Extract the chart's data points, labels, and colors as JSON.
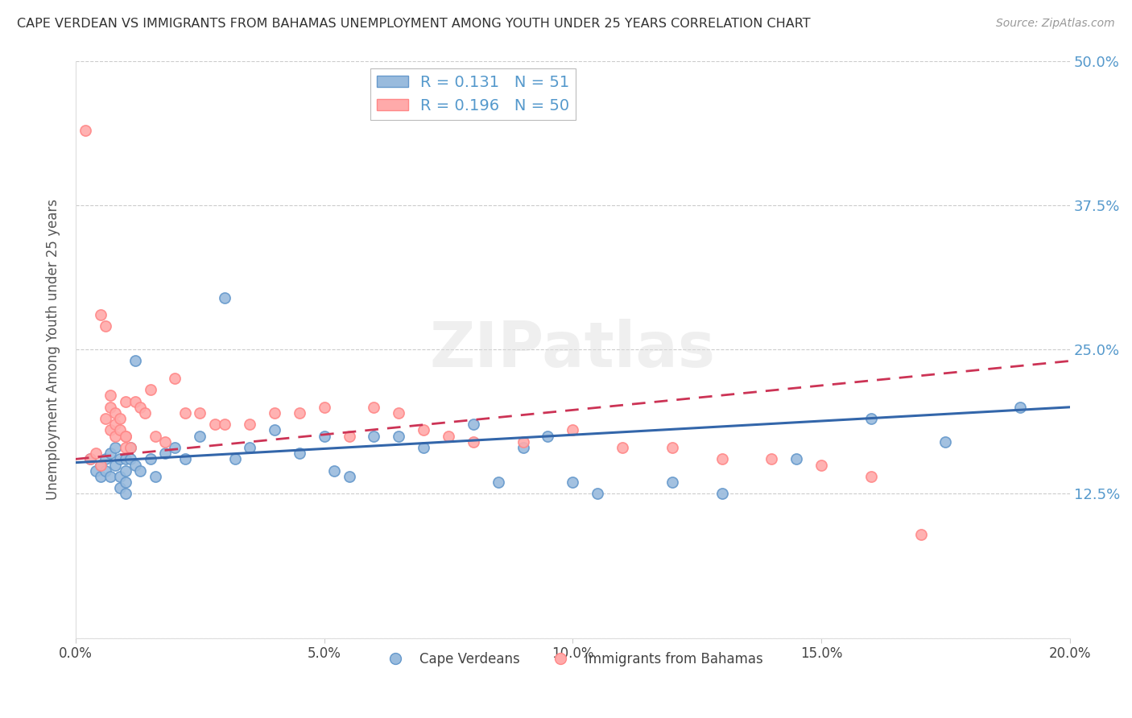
{
  "title": "CAPE VERDEAN VS IMMIGRANTS FROM BAHAMAS UNEMPLOYMENT AMONG YOUTH UNDER 25 YEARS CORRELATION CHART",
  "source": "Source: ZipAtlas.com",
  "ylabel": "Unemployment Among Youth under 25 years",
  "xlim": [
    0.0,
    0.2
  ],
  "ylim": [
    0.0,
    0.5
  ],
  "yticks": [
    0.0,
    0.125,
    0.25,
    0.375,
    0.5
  ],
  "ytick_labels_right": [
    "",
    "12.5%",
    "25.0%",
    "37.5%",
    "50.0%"
  ],
  "xticks": [
    0.0,
    0.05,
    0.1,
    0.15,
    0.2
  ],
  "xtick_labels": [
    "0.0%",
    "5.0%",
    "10.0%",
    "15.0%",
    "20.0%"
  ],
  "blue_color": "#99BBDD",
  "pink_color": "#FFAAAA",
  "blue_edge_color": "#6699CC",
  "pink_edge_color": "#FF8888",
  "blue_line_color": "#3366AA",
  "pink_line_color": "#CC3355",
  "tick_color": "#5599CC",
  "R_blue": 0.131,
  "N_blue": 51,
  "R_pink": 0.196,
  "N_pink": 50,
  "legend1": "Cape Verdeans",
  "legend2": "Immigrants from Bahamas",
  "watermark": "ZIPatlas",
  "blue_x": [
    0.003,
    0.004,
    0.005,
    0.005,
    0.006,
    0.006,
    0.007,
    0.007,
    0.008,
    0.008,
    0.009,
    0.009,
    0.009,
    0.01,
    0.01,
    0.01,
    0.01,
    0.011,
    0.011,
    0.012,
    0.012,
    0.013,
    0.015,
    0.016,
    0.018,
    0.02,
    0.022,
    0.025,
    0.03,
    0.032,
    0.035,
    0.04,
    0.045,
    0.05,
    0.052,
    0.055,
    0.06,
    0.065,
    0.07,
    0.08,
    0.085,
    0.09,
    0.095,
    0.1,
    0.105,
    0.12,
    0.13,
    0.145,
    0.16,
    0.175,
    0.19
  ],
  "blue_y": [
    0.155,
    0.145,
    0.15,
    0.14,
    0.155,
    0.145,
    0.16,
    0.14,
    0.165,
    0.15,
    0.155,
    0.14,
    0.13,
    0.155,
    0.145,
    0.135,
    0.125,
    0.165,
    0.155,
    0.24,
    0.15,
    0.145,
    0.155,
    0.14,
    0.16,
    0.165,
    0.155,
    0.175,
    0.295,
    0.155,
    0.165,
    0.18,
    0.16,
    0.175,
    0.145,
    0.14,
    0.175,
    0.175,
    0.165,
    0.185,
    0.135,
    0.165,
    0.175,
    0.135,
    0.125,
    0.135,
    0.125,
    0.155,
    0.19,
    0.17,
    0.2
  ],
  "pink_x": [
    0.002,
    0.003,
    0.004,
    0.005,
    0.005,
    0.006,
    0.006,
    0.007,
    0.007,
    0.007,
    0.008,
    0.008,
    0.008,
    0.009,
    0.009,
    0.01,
    0.01,
    0.01,
    0.01,
    0.011,
    0.012,
    0.013,
    0.014,
    0.015,
    0.016,
    0.018,
    0.02,
    0.022,
    0.025,
    0.028,
    0.03,
    0.035,
    0.04,
    0.045,
    0.05,
    0.055,
    0.06,
    0.065,
    0.07,
    0.075,
    0.08,
    0.09,
    0.1,
    0.11,
    0.12,
    0.13,
    0.14,
    0.15,
    0.16,
    0.17
  ],
  "pink_y": [
    0.44,
    0.155,
    0.16,
    0.28,
    0.15,
    0.27,
    0.19,
    0.21,
    0.2,
    0.18,
    0.195,
    0.185,
    0.175,
    0.19,
    0.18,
    0.175,
    0.165,
    0.205,
    0.175,
    0.165,
    0.205,
    0.2,
    0.195,
    0.215,
    0.175,
    0.17,
    0.225,
    0.195,
    0.195,
    0.185,
    0.185,
    0.185,
    0.195,
    0.195,
    0.2,
    0.175,
    0.2,
    0.195,
    0.18,
    0.175,
    0.17,
    0.17,
    0.18,
    0.165,
    0.165,
    0.155,
    0.155,
    0.15,
    0.14,
    0.09
  ]
}
